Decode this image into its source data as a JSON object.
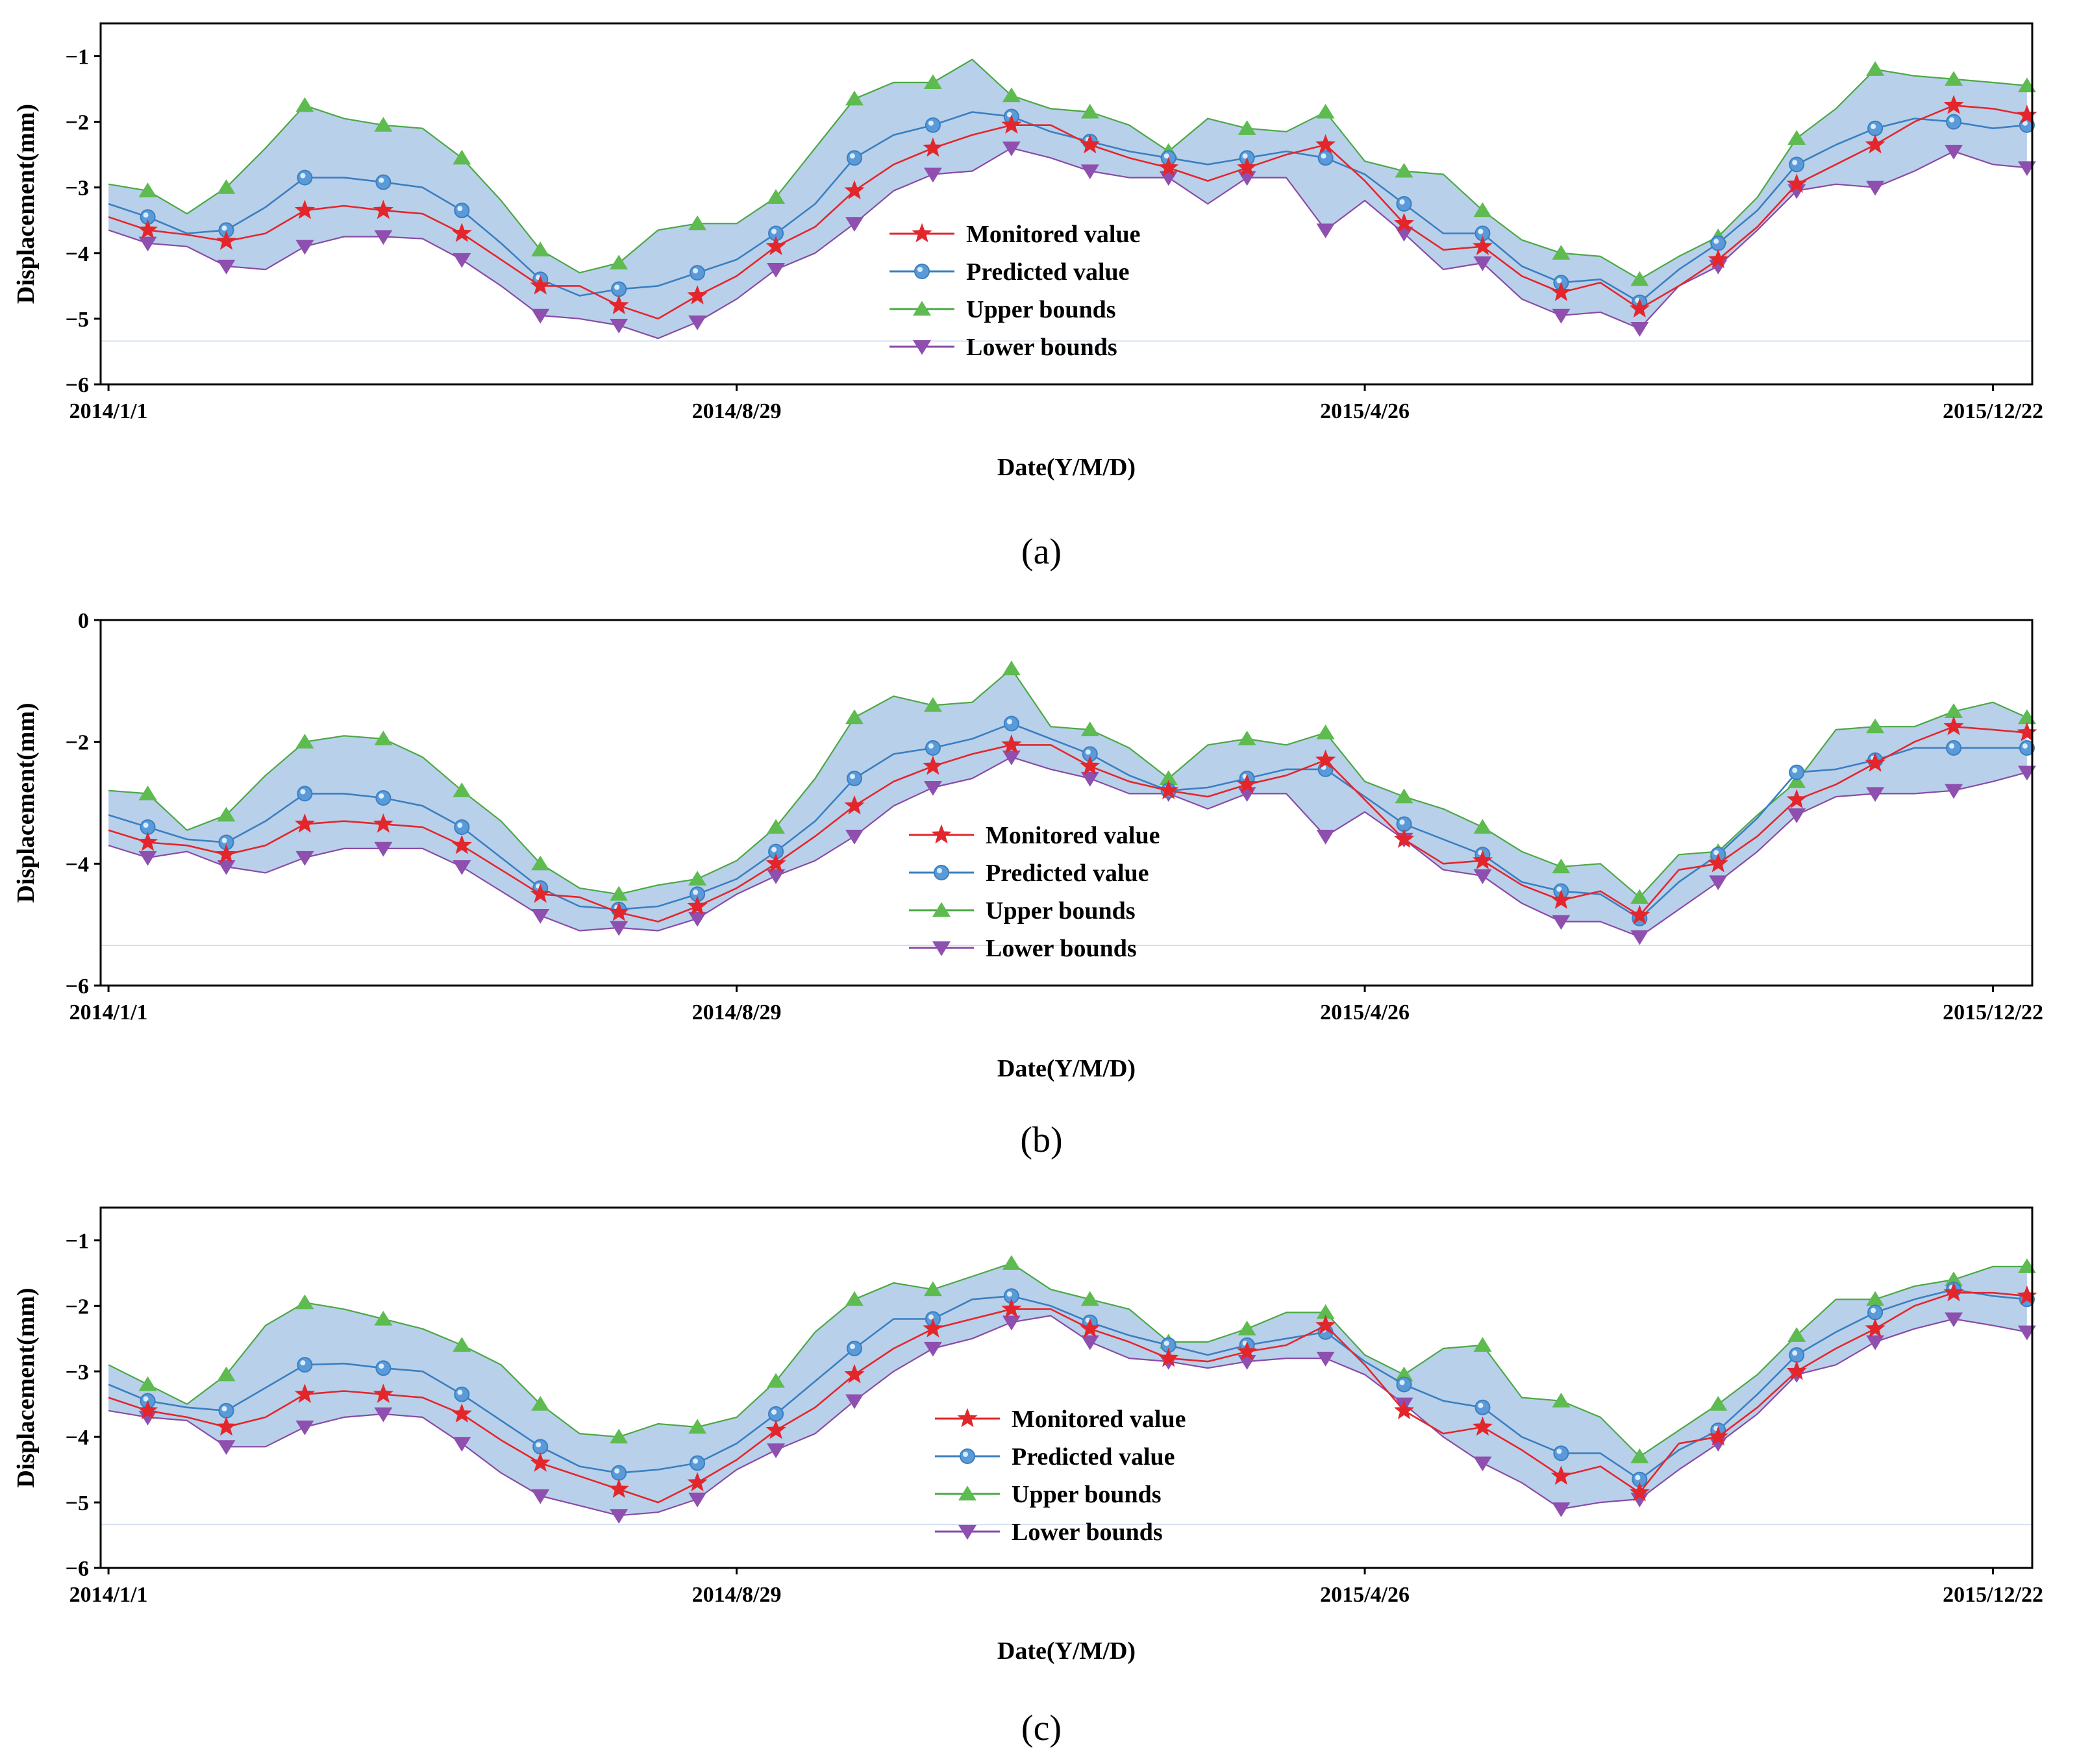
{
  "panel_labels": [
    "(a)",
    "(b)",
    "(c)"
  ],
  "colors": {
    "monitored": "#e3262c",
    "predicted": "#3a7fc1",
    "upper": "#4aa845",
    "lower": "#8a4aa6",
    "band_fill": "#b9d0ea",
    "upper_marker": "#5dbb4f",
    "lower_marker": "#8e4fae",
    "predicted_marker": "#5a9ad8"
  },
  "chart_data": [
    {
      "type": "line",
      "panel": "(a)",
      "xlabel": "Date(Y/M/D)",
      "ylabel": "Displacement(mm)",
      "x_tick_labels": [
        "2014/1/1",
        "2014/8/29",
        "2015/4/26",
        "2015/12/22"
      ],
      "x_tick_values": [
        0,
        240,
        480,
        720
      ],
      "xlim": [
        -3,
        735
      ],
      "ylim": [
        -6,
        -0.5
      ],
      "y_ticks": [
        -6,
        -5,
        -4,
        -3,
        -2,
        -1
      ],
      "y_tick_labels": [
        "−6",
        "−5",
        "−4",
        "−3",
        "−2",
        "−1"
      ],
      "legend": [
        "Monitored value",
        "Predicted value",
        "Upper bounds",
        "Lower bounds"
      ],
      "x": [
        0,
        15,
        30,
        45,
        60,
        75,
        90,
        105,
        120,
        135,
        150,
        165,
        180,
        195,
        210,
        225,
        240,
        255,
        270,
        285,
        300,
        315,
        330,
        345,
        360,
        375,
        390,
        405,
        420,
        435,
        450,
        465,
        480,
        495,
        510,
        525,
        540,
        555,
        570,
        585,
        600,
        615,
        630,
        645,
        660,
        675,
        690,
        705,
        720,
        733
      ],
      "series": [
        {
          "name": "Monitored value",
          "values": [
            -3.45,
            -3.65,
            -3.72,
            -3.82,
            -3.7,
            -3.35,
            -3.28,
            -3.35,
            -3.4,
            -3.7,
            -4.1,
            -4.5,
            -4.5,
            -4.8,
            -5.0,
            -4.65,
            -4.35,
            -3.9,
            -3.6,
            -3.05,
            -2.65,
            -2.4,
            -2.2,
            -2.05,
            -2.05,
            -2.35,
            -2.55,
            -2.7,
            -2.9,
            -2.7,
            -2.5,
            -2.35,
            -2.9,
            -3.55,
            -3.95,
            -3.9,
            -4.35,
            -4.6,
            -4.45,
            -4.85,
            -4.5,
            -4.1,
            -3.6,
            -2.95,
            -2.65,
            -2.35,
            -2.0,
            -1.75,
            -1.8,
            -1.9
          ]
        },
        {
          "name": "Predicted value",
          "values": [
            -3.25,
            -3.45,
            -3.7,
            -3.65,
            -3.3,
            -2.85,
            -2.85,
            -2.92,
            -3.0,
            -3.35,
            -3.85,
            -4.4,
            -4.65,
            -4.55,
            -4.5,
            -4.3,
            -4.1,
            -3.7,
            -3.25,
            -2.55,
            -2.2,
            -2.05,
            -1.85,
            -1.92,
            -2.15,
            -2.3,
            -2.45,
            -2.55,
            -2.65,
            -2.55,
            -2.45,
            -2.55,
            -2.8,
            -3.25,
            -3.7,
            -3.7,
            -4.2,
            -4.45,
            -4.4,
            -4.75,
            -4.25,
            -3.85,
            -3.35,
            -2.65,
            -2.35,
            -2.1,
            -1.95,
            -2.0,
            -2.1,
            -2.05
          ]
        },
        {
          "name": "Upper bounds",
          "values": [
            -2.95,
            -3.05,
            -3.4,
            -3.0,
            -2.4,
            -1.75,
            -1.95,
            -2.05,
            -2.1,
            -2.55,
            -3.2,
            -3.95,
            -4.3,
            -4.15,
            -3.65,
            -3.55,
            -3.55,
            -3.15,
            -2.4,
            -1.65,
            -1.4,
            -1.4,
            -1.05,
            -1.6,
            -1.8,
            -1.85,
            -2.05,
            -2.45,
            -1.95,
            -2.1,
            -2.15,
            -1.85,
            -2.6,
            -2.75,
            -2.8,
            -3.35,
            -3.8,
            -4.0,
            -4.05,
            -4.4,
            -4.05,
            -3.75,
            -3.15,
            -2.25,
            -1.8,
            -1.2,
            -1.3,
            -1.35,
            -1.4,
            -1.45
          ]
        },
        {
          "name": "Lower bounds",
          "values": [
            -3.65,
            -3.85,
            -3.9,
            -4.2,
            -4.25,
            -3.9,
            -3.75,
            -3.75,
            -3.78,
            -4.1,
            -4.5,
            -4.95,
            -5.0,
            -5.1,
            -5.3,
            -5.05,
            -4.7,
            -4.25,
            -4.0,
            -3.55,
            -3.05,
            -2.8,
            -2.75,
            -2.4,
            -2.55,
            -2.75,
            -2.85,
            -2.85,
            -3.25,
            -2.85,
            -2.85,
            -3.65,
            -3.2,
            -3.7,
            -4.25,
            -4.15,
            -4.7,
            -4.95,
            -4.9,
            -5.15,
            -4.5,
            -4.2,
            -3.65,
            -3.05,
            -2.95,
            -3.0,
            -2.75,
            -2.45,
            -2.65,
            -2.7
          ]
        }
      ]
    },
    {
      "type": "line",
      "panel": "(b)",
      "xlabel": "Date(Y/M/D)",
      "ylabel": "Displacement(mm)",
      "x_tick_labels": [
        "2014/1/1",
        "2014/8/29",
        "2015/4/26",
        "2015/12/22"
      ],
      "x_tick_values": [
        0,
        240,
        480,
        720
      ],
      "xlim": [
        -3,
        735
      ],
      "ylim": [
        -6,
        0
      ],
      "y_ticks": [
        -6,
        -4,
        -2,
        0
      ],
      "y_tick_labels": [
        "−6",
        "−4",
        "−2",
        "0"
      ],
      "legend": [
        "Monitored value",
        "Predicted value",
        "Upper bounds",
        "Lower bounds"
      ],
      "x": [
        0,
        15,
        30,
        45,
        60,
        75,
        90,
        105,
        120,
        135,
        150,
        165,
        180,
        195,
        210,
        225,
        240,
        255,
        270,
        285,
        300,
        315,
        330,
        345,
        360,
        375,
        390,
        405,
        420,
        435,
        450,
        465,
        480,
        495,
        510,
        525,
        540,
        555,
        570,
        585,
        600,
        615,
        630,
        645,
        660,
        675,
        690,
        705,
        720,
        733
      ],
      "series": [
        {
          "name": "Monitored value",
          "values": [
            -3.45,
            -3.65,
            -3.7,
            -3.85,
            -3.7,
            -3.35,
            -3.3,
            -3.35,
            -3.4,
            -3.7,
            -4.1,
            -4.5,
            -4.55,
            -4.8,
            -4.95,
            -4.7,
            -4.4,
            -4.0,
            -3.55,
            -3.05,
            -2.65,
            -2.4,
            -2.2,
            -2.05,
            -2.05,
            -2.4,
            -2.65,
            -2.8,
            -2.9,
            -2.7,
            -2.55,
            -2.3,
            -2.95,
            -3.6,
            -4.0,
            -3.95,
            -4.35,
            -4.6,
            -4.45,
            -4.85,
            -4.1,
            -4.0,
            -3.55,
            -2.95,
            -2.7,
            -2.35,
            -2.0,
            -1.75,
            -1.8,
            -1.85
          ]
        },
        {
          "name": "Predicted value",
          "values": [
            -3.2,
            -3.4,
            -3.6,
            -3.65,
            -3.3,
            -2.85,
            -2.85,
            -2.92,
            -3.05,
            -3.4,
            -3.9,
            -4.4,
            -4.7,
            -4.75,
            -4.7,
            -4.5,
            -4.25,
            -3.8,
            -3.3,
            -2.6,
            -2.2,
            -2.1,
            -1.95,
            -1.7,
            -1.95,
            -2.2,
            -2.55,
            -2.8,
            -2.75,
            -2.6,
            -2.45,
            -2.45,
            -2.9,
            -3.35,
            -3.6,
            -3.85,
            -4.3,
            -4.45,
            -4.5,
            -4.9,
            -4.3,
            -3.85,
            -3.25,
            -2.5,
            -2.45,
            -2.3,
            -2.1,
            -2.1,
            -2.1,
            -2.1
          ]
        },
        {
          "name": "Upper bounds",
          "values": [
            -2.8,
            -2.85,
            -3.45,
            -3.2,
            -2.55,
            -2.0,
            -1.9,
            -1.95,
            -2.25,
            -2.8,
            -3.3,
            -4.0,
            -4.4,
            -4.5,
            -4.35,
            -4.25,
            -3.95,
            -3.4,
            -2.6,
            -1.6,
            -1.25,
            -1.4,
            -1.35,
            -0.8,
            -1.75,
            -1.8,
            -2.1,
            -2.6,
            -2.05,
            -1.95,
            -2.05,
            -1.85,
            -2.65,
            -2.9,
            -3.1,
            -3.4,
            -3.8,
            -4.05,
            -4.0,
            -4.55,
            -3.85,
            -3.8,
            -3.2,
            -2.65,
            -1.8,
            -1.75,
            -1.75,
            -1.5,
            -1.35,
            -1.6
          ]
        },
        {
          "name": "Lower bounds",
          "values": [
            -3.7,
            -3.9,
            -3.8,
            -4.05,
            -4.15,
            -3.9,
            -3.75,
            -3.75,
            -3.75,
            -4.05,
            -4.45,
            -4.85,
            -5.1,
            -5.05,
            -5.1,
            -4.9,
            -4.5,
            -4.2,
            -3.95,
            -3.55,
            -3.05,
            -2.75,
            -2.6,
            -2.25,
            -2.45,
            -2.6,
            -2.85,
            -2.85,
            -3.1,
            -2.85,
            -2.85,
            -3.55,
            -3.15,
            -3.6,
            -4.1,
            -4.2,
            -4.65,
            -4.95,
            -4.95,
            -5.2,
            -4.75,
            -4.3,
            -3.8,
            -3.2,
            -2.9,
            -2.85,
            -2.85,
            -2.8,
            -2.65,
            -2.5
          ]
        }
      ]
    },
    {
      "type": "line",
      "panel": "(c)",
      "xlabel": "Date(Y/M/D)",
      "ylabel": "Displacement(mm)",
      "x_tick_labels": [
        "2014/1/1",
        "2014/8/29",
        "2015/4/26",
        "2015/12/22"
      ],
      "x_tick_values": [
        0,
        240,
        480,
        720
      ],
      "xlim": [
        -3,
        735
      ],
      "ylim": [
        -6,
        -0.5
      ],
      "y_ticks": [
        -6,
        -5,
        -4,
        -3,
        -2,
        -1
      ],
      "y_tick_labels": [
        "−6",
        "−5",
        "−4",
        "−3",
        "−2",
        "−1"
      ],
      "legend": [
        "Monitored value",
        "Predicted value",
        "Upper bounds",
        "Lower bounds"
      ],
      "x": [
        0,
        15,
        30,
        45,
        60,
        75,
        90,
        105,
        120,
        135,
        150,
        165,
        180,
        195,
        210,
        225,
        240,
        255,
        270,
        285,
        300,
        315,
        330,
        345,
        360,
        375,
        390,
        405,
        420,
        435,
        450,
        465,
        480,
        495,
        510,
        525,
        540,
        555,
        570,
        585,
        600,
        615,
        630,
        645,
        660,
        675,
        690,
        705,
        720,
        733
      ],
      "series": [
        {
          "name": "Monitored value",
          "values": [
            -3.4,
            -3.6,
            -3.7,
            -3.85,
            -3.7,
            -3.35,
            -3.3,
            -3.35,
            -3.4,
            -3.65,
            -4.05,
            -4.4,
            -4.6,
            -4.8,
            -5.0,
            -4.7,
            -4.35,
            -3.9,
            -3.55,
            -3.05,
            -2.65,
            -2.35,
            -2.2,
            -2.05,
            -2.05,
            -2.35,
            -2.55,
            -2.8,
            -2.85,
            -2.7,
            -2.6,
            -2.3,
            -2.9,
            -3.6,
            -3.95,
            -3.85,
            -4.2,
            -4.6,
            -4.45,
            -4.85,
            -4.1,
            -4.0,
            -3.55,
            -3.0,
            -2.65,
            -2.35,
            -2.0,
            -1.8,
            -1.8,
            -1.85
          ]
        },
        {
          "name": "Predicted value",
          "values": [
            -3.2,
            -3.45,
            -3.55,
            -3.6,
            -3.25,
            -2.9,
            -2.88,
            -2.95,
            -3.0,
            -3.35,
            -3.75,
            -4.15,
            -4.45,
            -4.55,
            -4.5,
            -4.4,
            -4.1,
            -3.65,
            -3.15,
            -2.65,
            -2.2,
            -2.2,
            -1.9,
            -1.85,
            -2.0,
            -2.25,
            -2.45,
            -2.6,
            -2.75,
            -2.6,
            -2.5,
            -2.4,
            -2.85,
            -3.2,
            -3.45,
            -3.55,
            -4.0,
            -4.25,
            -4.25,
            -4.65,
            -4.2,
            -3.9,
            -3.35,
            -2.75,
            -2.4,
            -2.1,
            -1.9,
            -1.75,
            -1.85,
            -1.9
          ]
        },
        {
          "name": "Upper bounds",
          "values": [
            -2.9,
            -3.2,
            -3.5,
            -3.05,
            -2.3,
            -1.95,
            -2.05,
            -2.2,
            -2.35,
            -2.6,
            -2.9,
            -3.5,
            -3.95,
            -4.0,
            -3.8,
            -3.85,
            -3.7,
            -3.15,
            -2.4,
            -1.9,
            -1.65,
            -1.75,
            -1.55,
            -1.35,
            -1.75,
            -1.9,
            -2.05,
            -2.55,
            -2.55,
            -2.35,
            -2.1,
            -2.1,
            -2.75,
            -3.05,
            -2.65,
            -2.6,
            -3.4,
            -3.45,
            -3.7,
            -4.3,
            -3.9,
            -3.5,
            -3.05,
            -2.45,
            -1.9,
            -1.9,
            -1.7,
            -1.6,
            -1.4,
            -1.4
          ]
        },
        {
          "name": "Lower bounds",
          "values": [
            -3.6,
            -3.7,
            -3.75,
            -4.15,
            -4.15,
            -3.85,
            -3.7,
            -3.65,
            -3.7,
            -4.1,
            -4.55,
            -4.9,
            -5.05,
            -5.2,
            -5.15,
            -4.95,
            -4.5,
            -4.2,
            -3.95,
            -3.45,
            -3.0,
            -2.65,
            -2.5,
            -2.25,
            -2.15,
            -2.55,
            -2.8,
            -2.85,
            -2.95,
            -2.85,
            -2.8,
            -2.8,
            -3.05,
            -3.5,
            -4.0,
            -4.4,
            -4.7,
            -5.1,
            -5.0,
            -4.95,
            -4.5,
            -4.1,
            -3.65,
            -3.05,
            -2.9,
            -2.55,
            -2.35,
            -2.2,
            -2.3,
            -2.4
          ]
        }
      ]
    }
  ]
}
